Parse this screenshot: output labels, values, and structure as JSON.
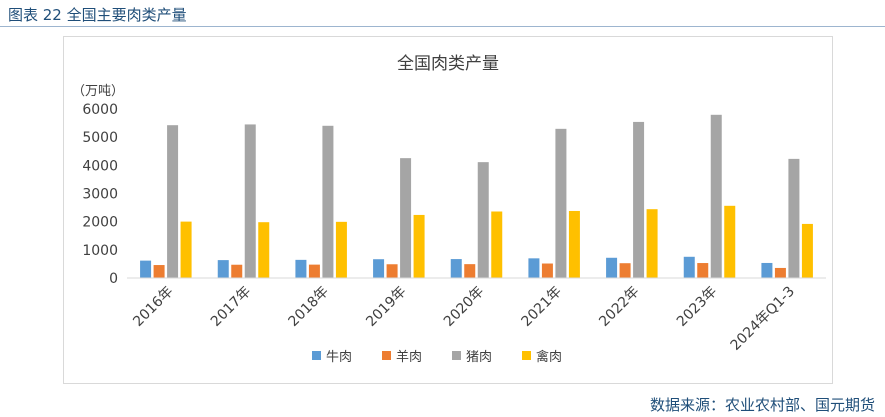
{
  "figure": {
    "caption": "图表 22  全国主要肉类产量",
    "source": "数据来源：农业农村部、国元期货"
  },
  "chart_data": {
    "type": "bar",
    "title": "全国肉类产量",
    "ylabel": "（万吨）",
    "xlabel": "",
    "categories": [
      "2016年",
      "2017年",
      "2018年",
      "2019年",
      "2020年",
      "2021年",
      "2022年",
      "2023年",
      "2024年Q1-3"
    ],
    "series": [
      {
        "name": "牛肉",
        "color": "#5b9bd5",
        "values": [
          617,
          635,
          644,
          667,
          672,
          698,
          718,
          753,
          534
        ]
      },
      {
        "name": "羊肉",
        "color": "#ed7d31",
        "values": [
          460,
          471,
          475,
          488,
          492,
          514,
          525,
          531,
          357
        ]
      },
      {
        "name": "猪肉",
        "color": "#a5a5a5",
        "values": [
          5425,
          5452,
          5404,
          4255,
          4113,
          5296,
          5541,
          5794,
          4229
        ]
      },
      {
        "name": "禽肉",
        "color": "#ffc000",
        "values": [
          2002,
          1981,
          1994,
          2239,
          2361,
          2380,
          2443,
          2563,
          1920
        ]
      }
    ],
    "ylim": [
      0,
      6000
    ],
    "yticks": [
      0,
      1000,
      2000,
      3000,
      4000,
      5000,
      6000
    ],
    "grid": false,
    "legend": "bottom"
  }
}
